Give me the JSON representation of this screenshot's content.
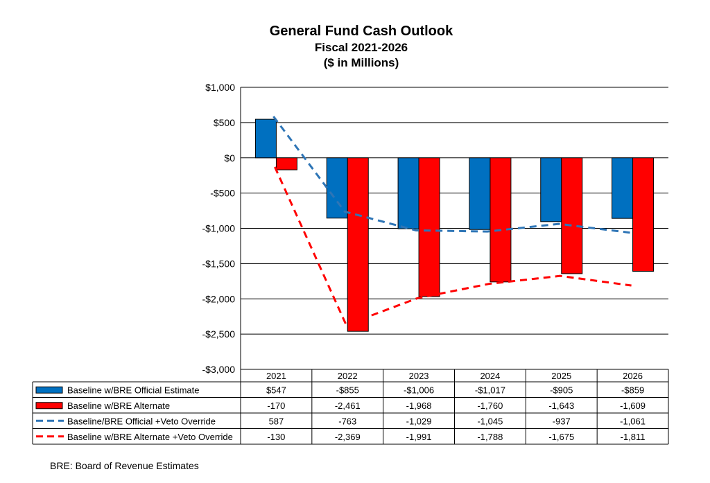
{
  "chart_data": {
    "type": "bar",
    "title": "General Fund Cash Outlook",
    "subtitle_1": "Fiscal 2021-2026",
    "subtitle_2": "($ in Millions)",
    "categories": [
      "2021",
      "2022",
      "2023",
      "2024",
      "2025",
      "2026"
    ],
    "ylim": [
      -3000,
      1000
    ],
    "y_ticks": [
      1000,
      500,
      0,
      -500,
      -1000,
      -1500,
      -2000,
      -2500,
      -3000
    ],
    "y_tick_labels": [
      "$1,000",
      "$500",
      "$0",
      "-$500",
      "-$1,000",
      "-$1,500",
      "-$2,000",
      "-$2,500",
      "-$3,000"
    ],
    "grid": true,
    "legend_placement": "table-below",
    "series": [
      {
        "name": "Baseline w/BRE Official Estimate",
        "kind": "bar",
        "color": "#0070C0",
        "values": [
          547,
          -855,
          -1006,
          -1017,
          -905,
          -859
        ],
        "labels": [
          "$547",
          "-$855",
          "-$1,006",
          "-$1,017",
          "-$905",
          "-$859"
        ]
      },
      {
        "name": "Baseline w/BRE Alternate",
        "kind": "bar",
        "color": "#FF0000",
        "values": [
          -170,
          -2461,
          -1968,
          -1760,
          -1643,
          -1609
        ],
        "labels": [
          "-170",
          "-2,461",
          "-1,968",
          "-1,760",
          "-1,643",
          "-1,609"
        ]
      },
      {
        "name": "Baseline/BRE Official +Veto Override",
        "kind": "dashed-line",
        "color": "#2E75B6",
        "values": [
          587,
          -763,
          -1029,
          -1045,
          -937,
          -1061
        ],
        "labels": [
          "587",
          "-763",
          "-1,029",
          "-1,045",
          "-937",
          "-1,061"
        ]
      },
      {
        "name": "Baseline w/BRE Alternate +Veto Override",
        "kind": "dashed-line",
        "color": "#FF0000",
        "values": [
          -130,
          -2369,
          -1991,
          -1788,
          -1675,
          -1811
        ],
        "labels": [
          "-130",
          "-2,369",
          "-1,991",
          "-1,788",
          "-1,675",
          "-1,811"
        ]
      }
    ]
  },
  "footnote": "BRE:  Board of Revenue Estimates"
}
